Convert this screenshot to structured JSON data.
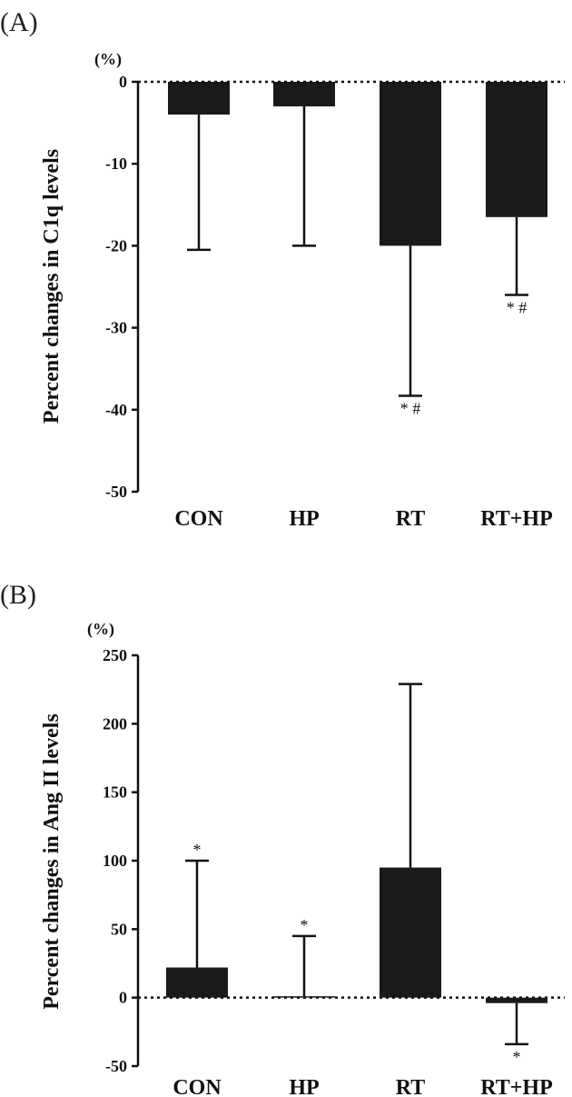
{
  "chart_data": [
    {
      "type": "bar",
      "panel_label": "(A)",
      "unit_label": "(%)",
      "ylabel": "Percent changes in C1q levels",
      "categories": [
        "CON",
        "HP",
        "RT",
        "RT+HP"
      ],
      "values": [
        -4,
        -3,
        -20,
        -16.5
      ],
      "error_ends": [
        -20.5,
        -20,
        -38.3,
        -26
      ],
      "annotations": [
        "",
        "",
        "* #",
        "* #"
      ],
      "ylim": [
        -50,
        0
      ],
      "yticks": [
        0,
        -10,
        -20,
        -30,
        -40,
        -50
      ],
      "ytick_labels": [
        "0",
        "-10",
        "-20",
        "-30",
        "-40",
        "-50"
      ],
      "zero_line": "dotted",
      "bar_color": "#1a1a1a"
    },
    {
      "type": "bar",
      "panel_label": "(B)",
      "unit_label": "(%)",
      "ylabel": "Percent changes in Ang II levels",
      "categories": [
        "CON",
        "HP",
        "RT",
        "RT+HP"
      ],
      "values": [
        22,
        1,
        95,
        -4
      ],
      "error_ends": [
        100,
        45,
        229,
        -34
      ],
      "annotations": [
        "*",
        "*",
        "",
        "*"
      ],
      "ylim": [
        -50,
        250
      ],
      "yticks": [
        250,
        200,
        150,
        100,
        50,
        0,
        -50
      ],
      "ytick_labels": [
        "250",
        "200",
        "150",
        "100",
        "50",
        "0",
        "-50"
      ],
      "zero_line": "dotted",
      "bar_color": "#1a1a1a"
    }
  ]
}
